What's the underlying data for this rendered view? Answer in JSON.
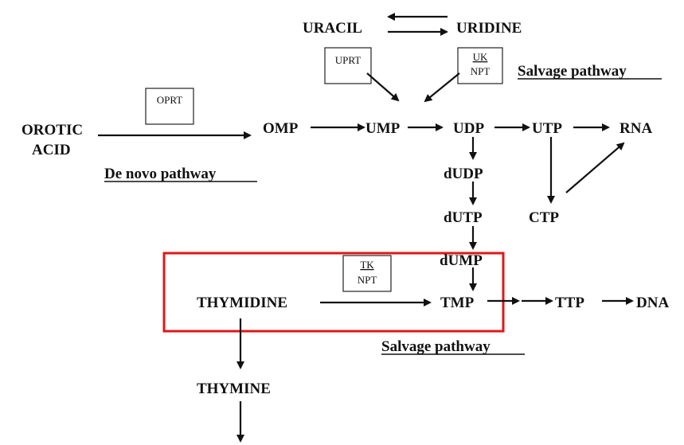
{
  "nodes": {
    "uracil": "URACIL",
    "uridine": "URIDINE",
    "orotic_1": "OROTIC",
    "orotic_2": "ACID",
    "omp": "OMP",
    "ump": "UMP",
    "udp": "UDP",
    "utp": "UTP",
    "rna": "RNA",
    "dudp": "dUDP",
    "dutp": "dUTP",
    "ctp": "CTP",
    "dump": "dUMP",
    "thymidine": "THYMIDINE",
    "tmp": "TMP",
    "ttp": "TTP",
    "dna": "DNA",
    "thymine": "THYMINE"
  },
  "enzymes": {
    "uprt": "UPRT",
    "uk": "UK",
    "npt_top": "NPT",
    "oprt": "OPRT",
    "tk": "TK",
    "npt_bottom": "NPT"
  },
  "labels": {
    "salvage_top": "Salvage pathway",
    "de_novo": "De novo pathway",
    "salvage_bottom": "Salvage pathway"
  },
  "colors": {
    "highlight": "#e01818",
    "ink": "#111111"
  }
}
